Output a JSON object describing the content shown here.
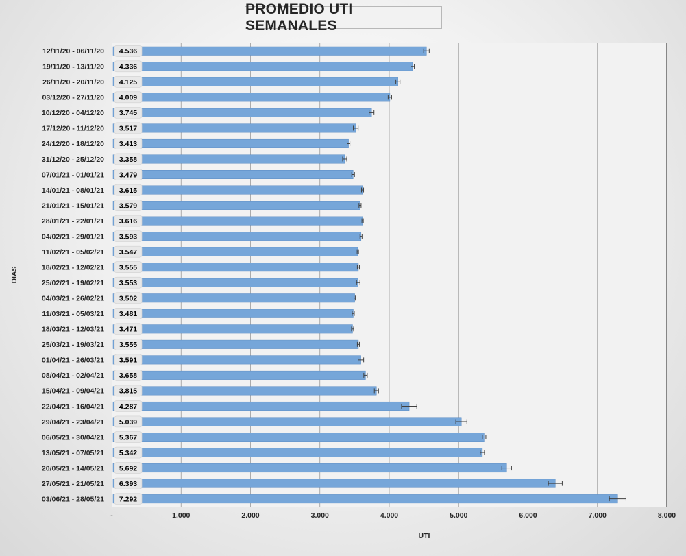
{
  "chart_data": {
    "type": "bar",
    "orientation": "horizontal",
    "title": "PROMEDIO UTI SEMANALES",
    "xlabel": "UTI",
    "ylabel": "DIAS",
    "xlim": [
      0,
      8000
    ],
    "x_ticks": [
      "-",
      "1.000",
      "2.000",
      "3.000",
      "4.000",
      "5.000",
      "6.000",
      "7.000",
      "8.000"
    ],
    "grid": true,
    "bar_color": "#76a6d9",
    "error_bars": true,
    "categories": [
      "12/11/20 - 06/11/20",
      "19/11/20 - 13/11/20",
      "26/11/20 - 20/11/20",
      "03/12/20 - 27/11/20",
      "10/12/20 - 04/12/20",
      "17/12/20 - 11/12/20",
      "24/12/20 - 18/12/20",
      "31/12/20 - 25/12/20",
      "07/01/21 - 01/01/21",
      "14/01/21 - 08/01/21",
      "21/01/21 - 15/01/21",
      "28/01/21 - 22/01/21",
      "04/02/21 - 29/01/21",
      "11/02/21 - 05/02/21",
      "18/02/21 - 12/02/21",
      "25/02/21 - 19/02/21",
      "04/03/21 - 26/02/21",
      "11/03/21 - 05/03/21",
      "18/03/21 - 12/03/21",
      "25/03/21 - 19/03/21",
      "01/04/21 - 26/03/21",
      "08/04/21 - 02/04/21",
      "15/04/21 - 09/04/21",
      "22/04/21 - 16/04/21",
      "29/04/21 - 23/04/21",
      "06/05/21 - 30/04/21",
      "13/05/21 - 07/05/21",
      "20/05/21 - 14/05/21",
      "27/05/21 - 21/05/21",
      "03/06/21 - 28/05/21"
    ],
    "values": [
      4536,
      4336,
      4125,
      4009,
      3745,
      3517,
      3413,
      3358,
      3479,
      3615,
      3579,
      3616,
      3593,
      3547,
      3555,
      3553,
      3502,
      3481,
      3471,
      3555,
      3591,
      3658,
      3815,
      4287,
      5039,
      5367,
      5342,
      5692,
      6393,
      7292
    ],
    "value_labels": [
      "4.536",
      "4.336",
      "4.125",
      "4.009",
      "3.745",
      "3.517",
      "3.413",
      "3.358",
      "3.479",
      "3.615",
      "3.579",
      "3.616",
      "3.593",
      "3.547",
      "3.555",
      "3.553",
      "3.502",
      "3.481",
      "3.471",
      "3.555",
      "3.591",
      "3.658",
      "3.815",
      "4.287",
      "5.039",
      "5.367",
      "5.342",
      "5.692",
      "6.393",
      "7.292"
    ],
    "errors": [
      40,
      25,
      30,
      25,
      35,
      35,
      20,
      30,
      20,
      15,
      15,
      10,
      15,
      10,
      15,
      25,
      10,
      15,
      15,
      15,
      40,
      25,
      30,
      110,
      80,
      25,
      30,
      70,
      100,
      120
    ]
  }
}
